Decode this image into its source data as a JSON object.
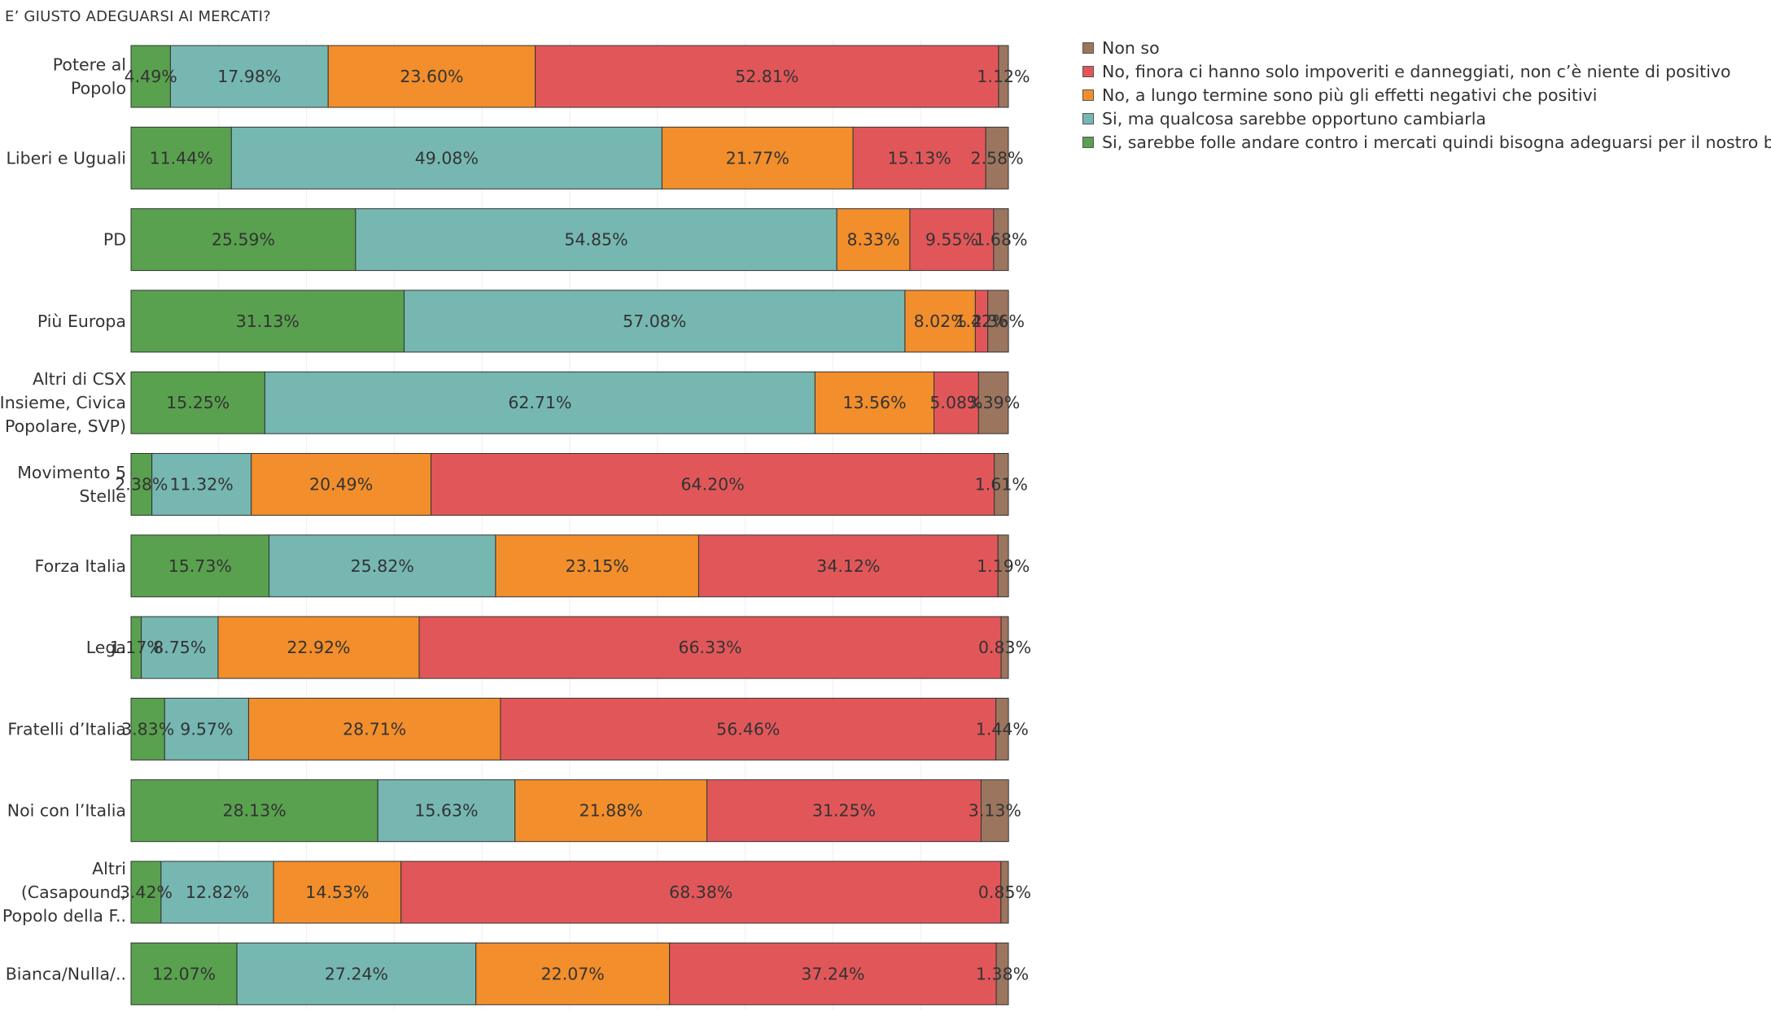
{
  "chart_data": {
    "type": "bar",
    "orientation": "horizontal",
    "stacked": "100%",
    "title": "E’ GIUSTO ADEGUARSI AI MERCATI?",
    "legend_position": "top-right",
    "categories": [
      "Potere al Popolo",
      "Liberi e Uguali",
      "PD",
      "Più Europa",
      "Altri di CSX (Insieme, Civica Popolare, SVP)",
      "Movimento 5 Stelle",
      "Forza Italia",
      "Lega",
      "Fratelli d’Italia",
      "Noi con l’Italia",
      "Altri (Casapound, Popolo della F..",
      "Bianca/Nulla/.."
    ],
    "category_lines": [
      [
        "Potere al",
        "Popolo"
      ],
      [
        "Liberi e Uguali"
      ],
      [
        "PD"
      ],
      [
        "Più Europa"
      ],
      [
        "Altri di CSX",
        "(Insieme, Civica",
        "Popolare, SVP)"
      ],
      [
        "Movimento 5",
        "Stelle"
      ],
      [
        "Forza Italia"
      ],
      [
        "Lega"
      ],
      [
        "Fratelli d’Italia"
      ],
      [
        "Noi con l’Italia"
      ],
      [
        "Altri",
        "(Casapound,",
        "Popolo della F.."
      ],
      [
        "Bianca/Nulla/.."
      ]
    ],
    "series": [
      {
        "name": "Si, sarebbe folle andare contro i mercati quindi bisogna adeguarsi per il nostro bene",
        "color": "#59a14f",
        "values": [
          4.49,
          11.44,
          25.59,
          31.13,
          15.25,
          2.38,
          15.73,
          1.17,
          3.83,
          28.13,
          3.42,
          12.07
        ]
      },
      {
        "name": "Si, ma qualcosa sarebbe opportuno cambiarla",
        "color": "#76b7b2",
        "values": [
          17.98,
          49.08,
          54.85,
          57.08,
          62.71,
          11.32,
          25.82,
          8.75,
          9.57,
          15.63,
          12.82,
          27.24
        ]
      },
      {
        "name": "No, a lungo termine sono più gli effetti negativi che positivi",
        "color": "#f28e2b",
        "values": [
          23.6,
          21.77,
          8.33,
          8.02,
          13.56,
          20.49,
          23.15,
          22.92,
          28.71,
          21.88,
          14.53,
          22.07
        ]
      },
      {
        "name": "No, finora ci hanno solo impoveriti e danneggiati, non c’è niente di positivo",
        "color": "#e15759",
        "values": [
          52.81,
          15.13,
          9.55,
          1.42,
          5.08,
          64.2,
          34.12,
          66.33,
          56.46,
          31.25,
          68.38,
          37.24
        ]
      },
      {
        "name": "Non so",
        "color": "#9c755f",
        "values": [
          1.12,
          2.58,
          1.68,
          2.36,
          3.39,
          1.61,
          1.19,
          0.83,
          1.44,
          3.13,
          0.85,
          1.38
        ]
      }
    ],
    "legend_order": [
      4,
      3,
      2,
      1,
      0
    ],
    "xlim": [
      0,
      100
    ],
    "grid": true
  }
}
